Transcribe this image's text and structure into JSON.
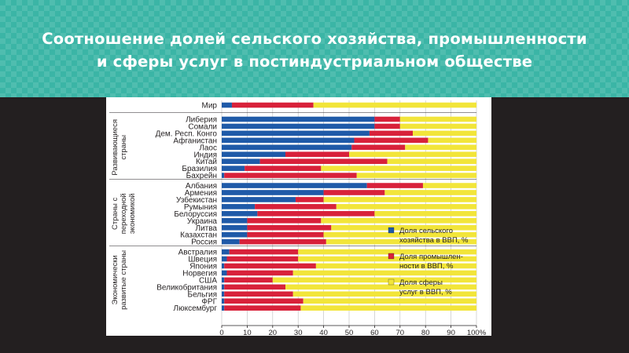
{
  "slide": {
    "title_line1": "Соотношение долей сельского хозяйства, промышленности",
    "title_line2": "и сферы услуг в постиндустриальном обществе"
  },
  "colors": {
    "agriculture": "#1f5aa8",
    "industry": "#d8213a",
    "services": "#f2e53a"
  },
  "chart_data": {
    "type": "bar",
    "orientation": "horizontal",
    "stacked": true,
    "title": "",
    "xlabel": "",
    "ylabel": "",
    "xlim": [
      0,
      100
    ],
    "x_ticks": [
      "0",
      "10",
      "20",
      "30",
      "40",
      "50",
      "60",
      "70",
      "80",
      "90",
      "100%"
    ],
    "grid": true,
    "legend_position": "right",
    "groups": [
      {
        "label_lines": [
          "Развивающиеся",
          "страны"
        ],
        "categories": [
          "Либерия",
          "Сомали",
          "Дем. Респ. Конго",
          "Афганистан",
          "Лаос",
          "Индия",
          "Китай",
          "Бразилия",
          "Бахрейн"
        ]
      },
      {
        "label_lines": [
          "Страны с",
          "переходной",
          "экономикой"
        ],
        "categories": [
          "Албания",
          "Армения",
          "Узбекистан",
          "Румыния",
          "Белоруссия",
          "Украина",
          "Литва",
          "Казахстан",
          "Россия"
        ]
      },
      {
        "label_lines": [
          "Экономически",
          "развитые страны"
        ],
        "categories": [
          "Австралия",
          "Швеция",
          "Япония",
          "Норвегия",
          "США",
          "Великобритания",
          "Бельгия",
          "ФРГ",
          "Люксембург"
        ]
      }
    ],
    "categories": [
      "Мир",
      "Либерия",
      "Сомали",
      "Дем. Респ. Конго",
      "Афганистан",
      "Лаос",
      "Индия",
      "Китай",
      "Бразилия",
      "Бахрейн",
      "Албания",
      "Армения",
      "Узбекистан",
      "Румыния",
      "Белоруссия",
      "Украина",
      "Литва",
      "Казахстан",
      "Россия",
      "Австралия",
      "Швеция",
      "Япония",
      "Норвегия",
      "США",
      "Великобритания",
      "Бельгия",
      "ФРГ",
      "Люксембург"
    ],
    "series": [
      {
        "name": "Доля сельского хозяйства в ВВП, %",
        "color_key": "agriculture",
        "values": [
          4,
          60,
          60,
          58,
          52,
          51,
          25,
          15,
          9,
          1,
          57,
          40,
          29,
          13,
          14,
          10,
          10,
          10,
          7,
          3,
          2,
          1,
          2,
          1,
          1,
          1,
          1,
          1
        ]
      },
      {
        "name": "Доля промышленности в ВВП, %",
        "color_key": "industry",
        "values": [
          32,
          10,
          10,
          17,
          29,
          21,
          25,
          50,
          30,
          52,
          22,
          24,
          11,
          32,
          46,
          29,
          33,
          30,
          34,
          27,
          28,
          36,
          26,
          19,
          24,
          27,
          31,
          30
        ]
      },
      {
        "name": "Доля сферы услуг в ВВП, %",
        "color_key": "services",
        "values": [
          64,
          30,
          30,
          25,
          19,
          28,
          50,
          35,
          61,
          47,
          21,
          36,
          60,
          55,
          40,
          61,
          57,
          60,
          59,
          70,
          70,
          63,
          72,
          80,
          75,
          72,
          68,
          69
        ]
      }
    ],
    "legend": [
      {
        "color_key": "agriculture",
        "lines": [
          "Доля сельского",
          "хозяйства в ВВП, %"
        ]
      },
      {
        "color_key": "industry",
        "lines": [
          "Доля промышлен-",
          "ности в ВВП, %"
        ]
      },
      {
        "color_key": "services",
        "lines": [
          "Доля сферы",
          "услуг в ВВП, %"
        ]
      }
    ]
  }
}
